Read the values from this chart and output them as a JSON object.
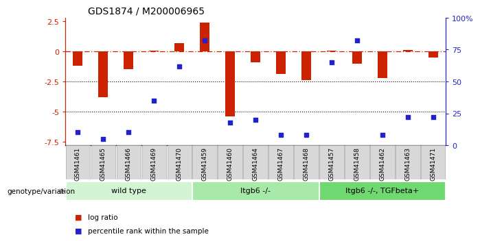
{
  "title": "GDS1874 / M200006965",
  "samples": [
    "GSM41461",
    "GSM41465",
    "GSM41466",
    "GSM41469",
    "GSM41470",
    "GSM41459",
    "GSM41460",
    "GSM41464",
    "GSM41467",
    "GSM41468",
    "GSM41457",
    "GSM41458",
    "GSM41462",
    "GSM41463",
    "GSM41471"
  ],
  "log_ratio": [
    -1.2,
    -3.8,
    -1.5,
    0.05,
    0.7,
    2.4,
    -5.4,
    -0.9,
    -1.9,
    -2.4,
    0.05,
    -1.0,
    -2.2,
    0.1,
    -0.5
  ],
  "percentile_rank": [
    10,
    5,
    10,
    35,
    62,
    82,
    18,
    20,
    8,
    8,
    65,
    82,
    8,
    22,
    22
  ],
  "groups": [
    {
      "label": "wild type",
      "start": 0,
      "end": 5,
      "color": "#d4f5d4"
    },
    {
      "label": "Itgb6 -/-",
      "start": 5,
      "end": 10,
      "color": "#a8e8a8"
    },
    {
      "label": "Itgb6 -/-, TGFbeta+",
      "start": 10,
      "end": 15,
      "color": "#70d870"
    }
  ],
  "bar_color": "#cc2200",
  "dot_color": "#2222cc",
  "ref_line_color": "#cc2200",
  "ylim_left": [
    -7.8,
    2.8
  ],
  "ylim_right": [
    0,
    100
  ],
  "yticks_left": [
    2.5,
    0,
    -2.5,
    -5.0,
    -7.5
  ],
  "ytick_labels_left": [
    "2.5",
    "0",
    "-2.5",
    "-5",
    "-7.5"
  ],
  "yticks_right": [
    100,
    75,
    50,
    25,
    0
  ],
  "ytick_labels_right": [
    "100%",
    "75",
    "50",
    "25",
    "0"
  ],
  "hline_y": [
    -2.5,
    -5.0
  ],
  "ref_line_y": 0,
  "legend_items": [
    {
      "label": "log ratio",
      "color": "#cc2200"
    },
    {
      "label": "percentile rank within the sample",
      "color": "#2222cc"
    }
  ],
  "group_label": "genotype/variation",
  "background_color": "#ffffff",
  "label_box_color": "#d8d8d8",
  "label_box_edge": "#aaaaaa"
}
